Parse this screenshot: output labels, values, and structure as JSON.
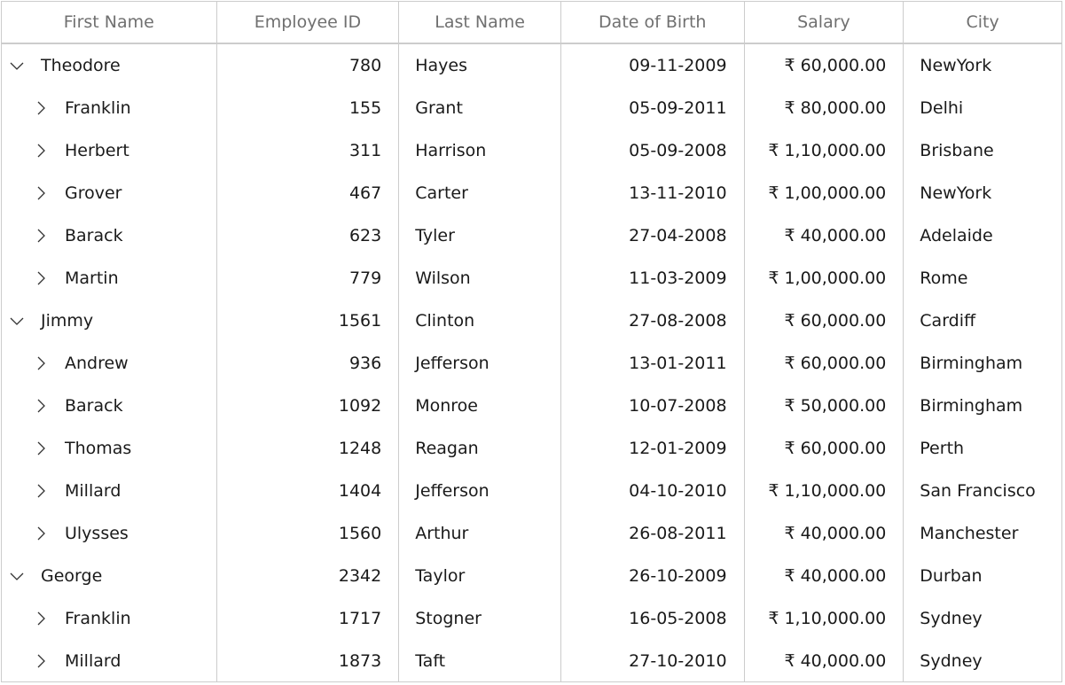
{
  "columns": [
    "First Name",
    "Employee ID",
    "Last Name",
    "Date of Birth",
    "Salary",
    "City"
  ],
  "rows": [
    {
      "level": 0,
      "expanded": true,
      "first_name": "Theodore",
      "employee_id": "780",
      "last_name": "Hayes",
      "dob": "09-11-2009",
      "salary": "₹ 60,000.00",
      "city": "NewYork"
    },
    {
      "level": 1,
      "expanded": false,
      "first_name": "Franklin",
      "employee_id": "155",
      "last_name": "Grant",
      "dob": "05-09-2011",
      "salary": "₹ 80,000.00",
      "city": "Delhi"
    },
    {
      "level": 1,
      "expanded": false,
      "first_name": "Herbert",
      "employee_id": "311",
      "last_name": "Harrison",
      "dob": "05-09-2008",
      "salary": "₹ 1,10,000.00",
      "city": "Brisbane"
    },
    {
      "level": 1,
      "expanded": false,
      "first_name": "Grover",
      "employee_id": "467",
      "last_name": "Carter",
      "dob": "13-11-2010",
      "salary": "₹ 1,00,000.00",
      "city": "NewYork"
    },
    {
      "level": 1,
      "expanded": false,
      "first_name": "Barack",
      "employee_id": "623",
      "last_name": "Tyler",
      "dob": "27-04-2008",
      "salary": "₹ 40,000.00",
      "city": "Adelaide"
    },
    {
      "level": 1,
      "expanded": false,
      "first_name": "Martin",
      "employee_id": "779",
      "last_name": "Wilson",
      "dob": "11-03-2009",
      "salary": "₹ 1,00,000.00",
      "city": "Rome"
    },
    {
      "level": 0,
      "expanded": true,
      "first_name": "Jimmy",
      "employee_id": "1561",
      "last_name": "Clinton",
      "dob": "27-08-2008",
      "salary": "₹ 60,000.00",
      "city": "Cardiff"
    },
    {
      "level": 1,
      "expanded": false,
      "first_name": "Andrew",
      "employee_id": "936",
      "last_name": "Jefferson",
      "dob": "13-01-2011",
      "salary": "₹ 60,000.00",
      "city": "Birmingham"
    },
    {
      "level": 1,
      "expanded": false,
      "first_name": "Barack",
      "employee_id": "1092",
      "last_name": "Monroe",
      "dob": "10-07-2008",
      "salary": "₹ 50,000.00",
      "city": "Birmingham"
    },
    {
      "level": 1,
      "expanded": false,
      "first_name": "Thomas",
      "employee_id": "1248",
      "last_name": "Reagan",
      "dob": "12-01-2009",
      "salary": "₹ 60,000.00",
      "city": "Perth"
    },
    {
      "level": 1,
      "expanded": false,
      "first_name": "Millard",
      "employee_id": "1404",
      "last_name": "Jefferson",
      "dob": "04-10-2010",
      "salary": "₹ 1,10,000.00",
      "city": "San Francisco"
    },
    {
      "level": 1,
      "expanded": false,
      "first_name": "Ulysses",
      "employee_id": "1560",
      "last_name": "Arthur",
      "dob": "26-08-2011",
      "salary": "₹ 40,000.00",
      "city": "Manchester"
    },
    {
      "level": 0,
      "expanded": true,
      "first_name": "George",
      "employee_id": "2342",
      "last_name": "Taylor",
      "dob": "26-10-2009",
      "salary": "₹ 40,000.00",
      "city": "Durban"
    },
    {
      "level": 1,
      "expanded": false,
      "first_name": "Franklin",
      "employee_id": "1717",
      "last_name": "Stogner",
      "dob": "16-05-2008",
      "salary": "₹ 1,10,000.00",
      "city": "Sydney"
    },
    {
      "level": 1,
      "expanded": false,
      "first_name": "Millard",
      "employee_id": "1873",
      "last_name": "Taft",
      "dob": "27-10-2010",
      "salary": "₹ 40,000.00",
      "city": "Sydney"
    }
  ],
  "icons": {
    "expanded": "chevron-down-icon",
    "collapsed": "chevron-right-icon"
  },
  "colors": {
    "header_text": "#707070",
    "border": "#cccccc",
    "cell_text": "#1a1a1a",
    "glyph": "#333333"
  }
}
